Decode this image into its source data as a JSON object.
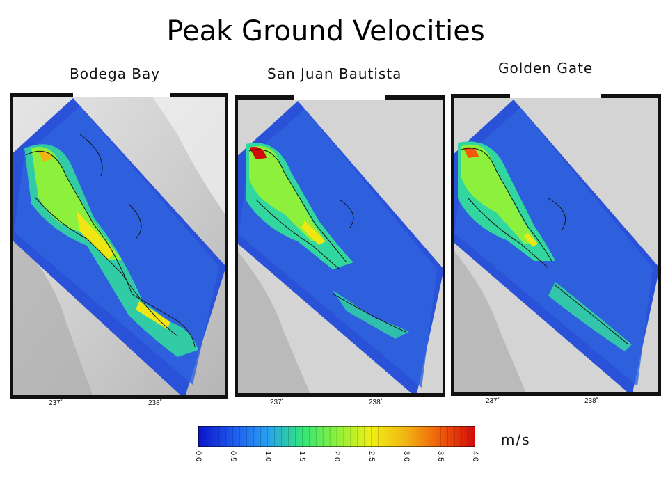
{
  "title": "Peak Ground Velocities",
  "panels": [
    {
      "label": "Bodega Bay",
      "lon_ticks": [
        "237˚",
        "238˚"
      ]
    },
    {
      "label": "San Juan Bautista",
      "lon_ticks": [
        "237˚",
        "238˚"
      ]
    },
    {
      "label": "Golden Gate",
      "lon_ticks": [
        "237˚",
        "238˚"
      ]
    }
  ],
  "colorbar": {
    "unit": "m/s",
    "min": 0.0,
    "max": 4.0,
    "ticks": [
      "0.0",
      "0.5",
      "1.0",
      "1.5",
      "2.0",
      "2.5",
      "3.0",
      "3.5",
      "4.0"
    ],
    "colors": [
      "#0a14c8",
      "#1e5af0",
      "#28a0f0",
      "#32e67a",
      "#8cf03c",
      "#f0f014",
      "#f0b414",
      "#f05a0a",
      "#d20a0a"
    ]
  }
}
